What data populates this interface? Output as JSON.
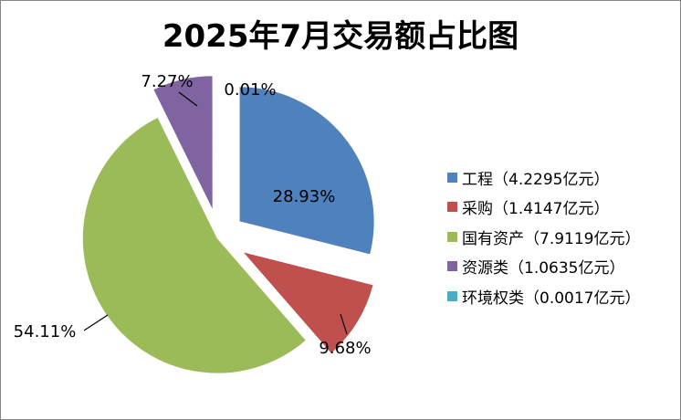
{
  "chart_data": {
    "type": "pie",
    "title": "2025年7月交易额占比图",
    "series": [
      {
        "name": "工程（4.2295亿元）",
        "value": 4.2295,
        "percent_label": "28.93%",
        "color": "#4F81BD"
      },
      {
        "name": "采购（1.4147亿元）",
        "value": 1.4147,
        "percent_label": "9.68%",
        "color": "#C0504D"
      },
      {
        "name": "国有资产（7.9119亿元）",
        "value": 7.9119,
        "percent_label": "54.11%",
        "color": "#9BBB59"
      },
      {
        "name": "资源类（1.0635亿元）",
        "value": 1.0635,
        "percent_label": "7.27%",
        "color": "#8064A2"
      },
      {
        "name": "环境权类（0.0017亿元）",
        "value": 0.0017,
        "percent_label": "0.01%",
        "color": "#4BACC6"
      }
    ],
    "legend_position": "right"
  }
}
